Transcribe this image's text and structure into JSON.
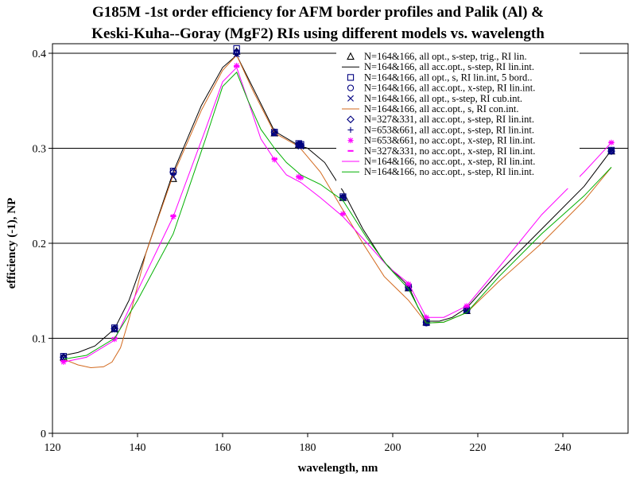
{
  "chart_data": {
    "type": "line",
    "title_line1": "G185M -1st order efficiency for AFM border profiles and Palik (Al) &",
    "title_line2": "Keski-Kuha--Goray (MgF2) RIs using different models vs. wavelength",
    "xlabel": "wavelength, nm",
    "ylabel": "efficiency (-1), NP",
    "xlim": [
      120,
      255
    ],
    "ylim": [
      0,
      0.42
    ],
    "x_ticks": [
      120,
      140,
      160,
      180,
      200,
      220,
      240
    ],
    "y_ticks": [
      0,
      0.1,
      0.2,
      0.3,
      0.4
    ],
    "y_tick_labels": [
      "0",
      "0.1",
      "0.2",
      "0.3",
      "0.4"
    ],
    "grid": "horizontal",
    "legend_position": "top-right",
    "point_x": [
      122.6,
      134.6,
      148.4,
      163.3,
      172.2,
      177.9,
      178.4,
      188.3,
      203.7,
      207.9,
      217.4,
      251.4
    ],
    "series": [
      {
        "name": "N=164&166, all opt., s-step, trig., RI lin.",
        "kind": "marker",
        "marker": "triangle",
        "color": "#000000",
        "y": [
          0.08,
          0.11,
          0.268,
          0.402,
          0.316,
          0.304,
          0.303,
          0.248,
          0.153,
          0.117,
          0.129,
          0.297
        ]
      },
      {
        "name": "N=164&166, all acc.opt., s-step, RI lin.int.",
        "kind": "line",
        "color": "#000000",
        "x": [
          122.6,
          126,
          130,
          134.6,
          138,
          142,
          148.4,
          155,
          160,
          163.3,
          167,
          172.2,
          177.9,
          180,
          184,
          188.3,
          193,
          198,
          203.7,
          206,
          207.9,
          211,
          214,
          217.4,
          225,
          235,
          245,
          251.4
        ],
        "y": [
          0.082,
          0.085,
          0.092,
          0.11,
          0.14,
          0.19,
          0.275,
          0.345,
          0.385,
          0.398,
          0.365,
          0.318,
          0.303,
          0.3,
          0.285,
          0.255,
          0.215,
          0.18,
          0.155,
          0.132,
          0.118,
          0.118,
          0.122,
          0.132,
          0.17,
          0.215,
          0.26,
          0.298
        ]
      },
      {
        "name": "N=164&166, all opt., s, RI lin.int, 5 bord..",
        "kind": "marker",
        "marker": "square",
        "color": "#000080",
        "y": [
          0.081,
          0.111,
          0.276,
          0.405,
          0.317,
          0.305,
          0.304,
          0.249,
          0.154,
          0.117,
          0.13,
          0.298
        ]
      },
      {
        "name": "N=164&166, all acc.opt., x-step, RI lin.int.",
        "kind": "marker",
        "marker": "circle",
        "color": "#000080",
        "y": [
          0.08,
          0.11,
          0.275,
          0.401,
          0.316,
          0.304,
          0.303,
          0.248,
          0.153,
          0.116,
          0.129,
          0.297
        ]
      },
      {
        "name": "N=164&166, all opt., s-step, RI cub.int.",
        "kind": "marker",
        "marker": "x",
        "color": "#000080",
        "y": [
          0.079,
          0.109,
          0.27,
          0.399,
          0.316,
          0.303,
          0.302,
          0.248,
          0.153,
          0.116,
          0.129,
          0.297
        ]
      },
      {
        "name": "N=164&166, all acc.opt., s, RI con.int.",
        "kind": "line",
        "color": "#d2691e",
        "x": [
          122.6,
          126,
          129,
          132,
          134,
          136,
          138,
          142,
          148.4,
          155,
          160,
          163.3,
          167,
          172.2,
          177.9,
          183,
          188.3,
          193,
          198,
          203.7,
          207.9,
          212,
          217.4,
          225,
          235,
          245,
          251.4
        ],
        "y": [
          0.078,
          0.072,
          0.069,
          0.07,
          0.075,
          0.09,
          0.12,
          0.19,
          0.272,
          0.34,
          0.382,
          0.398,
          0.362,
          0.316,
          0.302,
          0.275,
          0.235,
          0.2,
          0.165,
          0.14,
          0.116,
          0.117,
          0.127,
          0.16,
          0.2,
          0.245,
          0.28
        ]
      },
      {
        "name": "N=327&331, all acc.opt., s-step, RI lin.int.",
        "kind": "marker",
        "marker": "diamond",
        "color": "#000080",
        "y": [
          0.08,
          0.11,
          0.275,
          0.4,
          0.317,
          0.304,
          0.303,
          0.248,
          0.154,
          0.117,
          0.13,
          0.297
        ]
      },
      {
        "name": "N=653&661, all acc.opt., s-step, RI lin.int.",
        "kind": "marker",
        "marker": "plus",
        "color": "#000080",
        "y": [
          0.08,
          0.11,
          0.274,
          0.4,
          0.316,
          0.304,
          0.303,
          0.248,
          0.153,
          0.116,
          0.129,
          0.297
        ]
      },
      {
        "name": "N=653&661, no acc.opt., x-step, RI lin.int.",
        "kind": "marker",
        "marker": "asterisk",
        "color": "#ff00ff",
        "y": [
          0.075,
          0.099,
          0.228,
          0.387,
          0.288,
          0.27,
          0.269,
          0.231,
          0.157,
          0.122,
          0.134,
          0.306
        ]
      },
      {
        "name": "N=327&331, no acc.opt., x-step, RI lin.int.",
        "kind": "marker",
        "marker": "dash",
        "color": "#ff00ff",
        "y": [
          0.076,
          0.1,
          0.229,
          0.386,
          0.289,
          0.27,
          0.269,
          0.231,
          0.157,
          0.122,
          0.134,
          0.306
        ]
      },
      {
        "name": "N=164&166, no acc.opt., x-step, RI lin.int.",
        "kind": "line",
        "color": "#ff00ff",
        "x": [
          122.6,
          128,
          134.6,
          140,
          148.4,
          156,
          160,
          163.3,
          166,
          169,
          172.2,
          175,
          178.4,
          183,
          188.3,
          194,
          199,
          203.7,
          207.9,
          212,
          217.4,
          225,
          235,
          245,
          251.4
        ],
        "y": [
          0.075,
          0.08,
          0.098,
          0.15,
          0.228,
          0.32,
          0.37,
          0.385,
          0.35,
          0.31,
          0.288,
          0.272,
          0.264,
          0.248,
          0.228,
          0.2,
          0.175,
          0.158,
          0.122,
          0.122,
          0.134,
          0.175,
          0.23,
          0.275,
          0.306
        ]
      },
      {
        "name": "N=164&166, no acc.opt., s-step, RI lin.int.",
        "kind": "line",
        "color": "#00b000",
        "x": [
          122.6,
          128,
          134.6,
          140,
          148.4,
          156,
          160,
          163.3,
          166,
          169,
          172.2,
          175,
          178.4,
          183,
          188.3,
          194,
          199,
          203.7,
          207.9,
          212,
          217.4,
          225,
          235,
          245,
          251.4
        ],
        "y": [
          0.078,
          0.082,
          0.1,
          0.14,
          0.21,
          0.31,
          0.365,
          0.38,
          0.35,
          0.32,
          0.3,
          0.285,
          0.272,
          0.262,
          0.245,
          0.205,
          0.175,
          0.152,
          0.116,
          0.117,
          0.127,
          0.165,
          0.21,
          0.25,
          0.28
        ]
      }
    ]
  }
}
